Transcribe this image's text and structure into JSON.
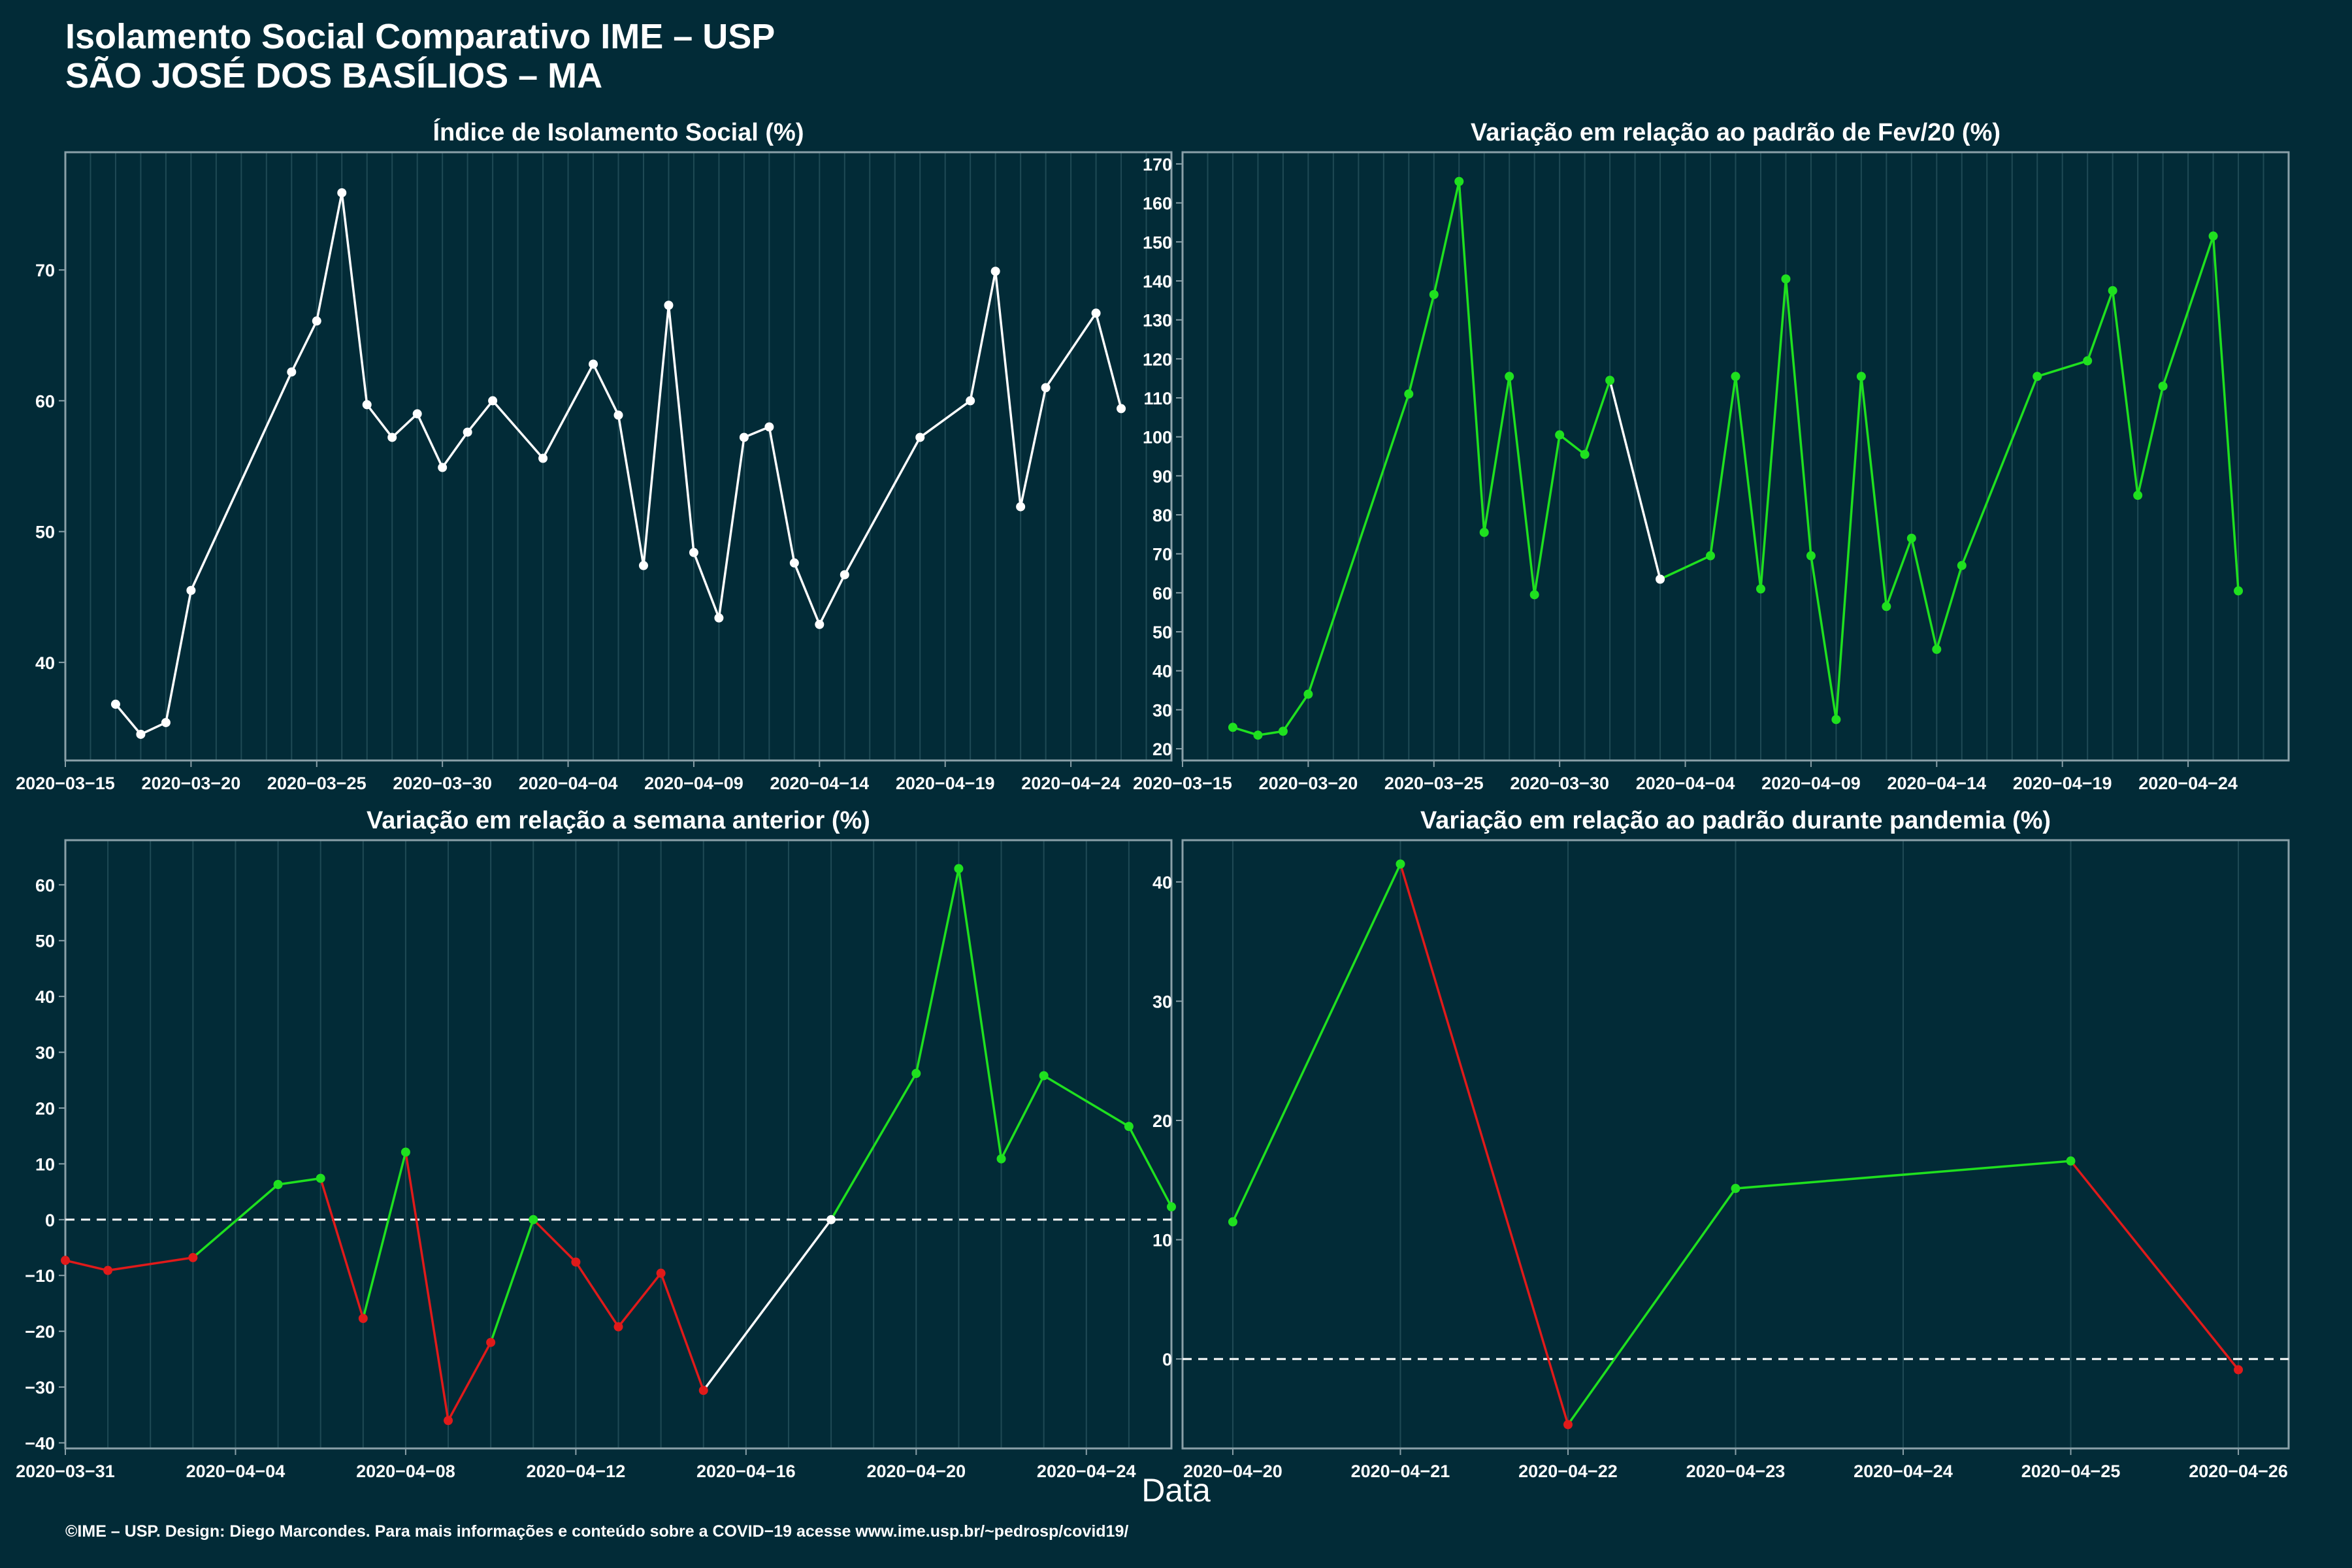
{
  "header": {
    "title_line1": "Isolamento Social Comparativo IME – USP",
    "title_line2": "SÃO JOSÉ DOS BASÍLIOS – MA"
  },
  "x_axis_label": "Data",
  "footer": "©IME – USP. Design: Diego Marcondes. Para mais informações e conteúdo sobre a COVID−19 acesse www.ime.usp.br/~pedrosp/covid19/",
  "colors": {
    "background": "#022b37",
    "panel_border": "#8aa0a8",
    "grid": "#1f4a55",
    "neutral": "#ffffff",
    "increase": "#1fe01f",
    "decrease": "#e01a1a"
  },
  "chart_data": [
    {
      "type": "line",
      "title": "Índice de Isolamento Social (%)",
      "start_date": "2020-03-15",
      "x_ticks": [
        "2020−03−15",
        "2020−03−20",
        "2020−03−25",
        "2020−03−30",
        "2020−04−04",
        "2020−04−09",
        "2020−04−14",
        "2020−04−19",
        "2020−04−24"
      ],
      "x_range": [
        "2020-03-15",
        "2020-04-28"
      ],
      "y_ticks": [
        40,
        50,
        60,
        70
      ],
      "ylim": [
        32.5,
        79
      ],
      "x": [
        "2020-03-17",
        "2020-03-18",
        "2020-03-19",
        "2020-03-20",
        "2020-03-24",
        "2020-03-25",
        "2020-03-26",
        "2020-03-27",
        "2020-03-28",
        "2020-03-29",
        "2020-03-30",
        "2020-03-31",
        "2020-04-01",
        "2020-04-03",
        "2020-04-05",
        "2020-04-06",
        "2020-04-07",
        "2020-04-08",
        "2020-04-09",
        "2020-04-10",
        "2020-04-11",
        "2020-04-12",
        "2020-04-13",
        "2020-04-14",
        "2020-04-15",
        "2020-04-18",
        "2020-04-20",
        "2020-04-21",
        "2020-04-22",
        "2020-04-23",
        "2020-04-25",
        "2020-04-26"
      ],
      "y": [
        36.8,
        34.5,
        35.4,
        45.5,
        62.2,
        66.1,
        75.9,
        59.7,
        57.2,
        59.0,
        54.9,
        57.6,
        60.0,
        55.6,
        62.8,
        58.9,
        47.4,
        67.3,
        48.4,
        43.4,
        57.2,
        58.0,
        47.6,
        42.9,
        46.7,
        57.2,
        60.0,
        69.9,
        51.9,
        61.0,
        66.7,
        59.4
      ],
      "colors": [
        "neutral",
        "neutral",
        "neutral",
        "neutral",
        "neutral",
        "neutral",
        "neutral",
        "neutral",
        "neutral",
        "neutral",
        "neutral",
        "neutral",
        "neutral",
        "neutral",
        "neutral",
        "neutral",
        "neutral",
        "neutral",
        "neutral",
        "neutral",
        "neutral",
        "neutral",
        "neutral",
        "neutral",
        "neutral",
        "neutral",
        "neutral",
        "neutral",
        "neutral",
        "neutral",
        "neutral",
        "neutral"
      ],
      "zero_line": false
    },
    {
      "type": "line",
      "title": "Variação em relação ao padrão de Fev/20 (%)",
      "start_date": "2020-03-15",
      "x_ticks": [
        "2020−03−15",
        "2020−03−20",
        "2020−03−25",
        "2020−03−30",
        "2020−04−04",
        "2020−04−09",
        "2020−04−14",
        "2020−04−19",
        "2020−04−24"
      ],
      "x_range": [
        "2020-03-15",
        "2020-04-28"
      ],
      "y_ticks": [
        20,
        30,
        40,
        50,
        60,
        70,
        80,
        90,
        100,
        110,
        120,
        130,
        140,
        150,
        160,
        170
      ],
      "ylim": [
        17,
        173
      ],
      "x": [
        "2020-03-17",
        "2020-03-18",
        "2020-03-19",
        "2020-03-20",
        "2020-03-24",
        "2020-03-25",
        "2020-03-26",
        "2020-03-27",
        "2020-03-28",
        "2020-03-29",
        "2020-03-30",
        "2020-03-31",
        "2020-04-01",
        "2020-04-03",
        "2020-04-05",
        "2020-04-06",
        "2020-04-07",
        "2020-04-08",
        "2020-04-09",
        "2020-04-10",
        "2020-04-11",
        "2020-04-12",
        "2020-04-13",
        "2020-04-14",
        "2020-04-15",
        "2020-04-18",
        "2020-04-20",
        "2020-04-21",
        "2020-04-22",
        "2020-04-23",
        "2020-04-25",
        "2020-04-26"
      ],
      "y": [
        25.5,
        23.5,
        24.5,
        34.0,
        111.0,
        136.5,
        165.5,
        75.5,
        115.5,
        59.5,
        100.5,
        95.5,
        114.5,
        63.5,
        69.5,
        115.5,
        61.0,
        140.5,
        69.5,
        27.5,
        115.5,
        56.5,
        74.0,
        45.5,
        67.0,
        115.5,
        119.5,
        137.5,
        85.0,
        113.0,
        151.5,
        60.5
      ],
      "colors": [
        "increase",
        "increase",
        "increase",
        "increase",
        "increase",
        "increase",
        "increase",
        "increase",
        "increase",
        "increase",
        "increase",
        "increase",
        "increase",
        "neutral",
        "increase",
        "increase",
        "increase",
        "increase",
        "increase",
        "increase",
        "increase",
        "increase",
        "increase",
        "increase",
        "increase",
        "increase",
        "increase",
        "increase",
        "increase",
        "increase",
        "increase",
        "increase"
      ],
      "zero_line": false
    },
    {
      "type": "line",
      "title": "Variação em relação a semana anterior (%)",
      "start_date": "2020-03-31",
      "x_ticks": [
        "2020−03−31",
        "2020−04−04",
        "2020−04−08",
        "2020−04−12",
        "2020−04−16",
        "2020−04−20",
        "2020−04−24"
      ],
      "x_range": [
        "2020-03-31",
        "2020-04-26"
      ],
      "y_ticks": [
        -40,
        -30,
        -20,
        -10,
        0,
        10,
        20,
        30,
        40,
        50,
        60
      ],
      "ylim": [
        -41,
        68
      ],
      "x": [
        "2020-03-31",
        "2020-04-01",
        "2020-04-03",
        "2020-04-05",
        "2020-04-06",
        "2020-04-07",
        "2020-04-08",
        "2020-04-09",
        "2020-04-10",
        "2020-04-11",
        "2020-04-12",
        "2020-04-13",
        "2020-04-14",
        "2020-04-15",
        "2020-04-18",
        "2020-04-20",
        "2020-04-21",
        "2020-04-22",
        "2020-04-23",
        "2020-04-25",
        "2020-04-26"
      ],
      "y": [
        -7.3,
        -9.1,
        -6.8,
        6.3,
        7.4,
        -17.7,
        12.1,
        -36.0,
        -22.0,
        0.0,
        -7.6,
        -19.2,
        -9.6,
        -30.6,
        0.0,
        26.2,
        62.9,
        10.9,
        25.8,
        16.7,
        2.3
      ],
      "colors": [
        "decrease",
        "decrease",
        "decrease",
        "increase",
        "increase",
        "decrease",
        "increase",
        "decrease",
        "decrease",
        "increase",
        "decrease",
        "decrease",
        "decrease",
        "decrease",
        "neutral",
        "increase",
        "increase",
        "increase",
        "increase",
        "increase",
        "increase"
      ],
      "zero_line": true
    },
    {
      "type": "line",
      "title": "Variação em relação ao padrão durante pandemia (%)",
      "start_date": "2020-04-20",
      "x_ticks": [
        "2020−04−20",
        "2020−04−21",
        "2020−04−22",
        "2020−04−23",
        "2020−04−24",
        "2020−04−25",
        "2020−04−26"
      ],
      "x_range": [
        "2020-04-19.7",
        "2020-04-26.3"
      ],
      "y_ticks": [
        0,
        10,
        20,
        30,
        40
      ],
      "ylim": [
        -7.5,
        43.5
      ],
      "x": [
        "2020-04-20",
        "2020-04-21",
        "2020-04-22",
        "2020-04-23",
        "2020-04-25",
        "2020-04-26"
      ],
      "y": [
        11.5,
        41.5,
        -5.5,
        14.3,
        16.6,
        -0.9
      ],
      "colors": [
        "increase",
        "increase",
        "decrease",
        "increase",
        "increase",
        "decrease"
      ],
      "zero_line": true
    }
  ]
}
